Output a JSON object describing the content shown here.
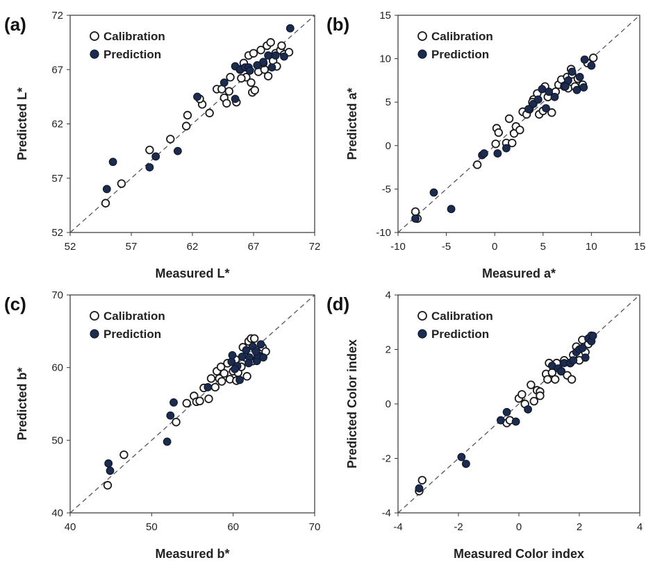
{
  "colors": {
    "calibration_fill": "#ffffff",
    "calibration_stroke": "#1a1a1a",
    "prediction_fill": "#1c2c4f",
    "prediction_stroke": "#0e1830",
    "axis": "#333333",
    "one_to_one_line": "#555555"
  },
  "chart_data": [
    {
      "panel": "(a)",
      "type": "scatter",
      "xlabel": "Measured L*",
      "ylabel": "Predicted L*",
      "xlim": [
        52,
        72
      ],
      "ylim": [
        52,
        72
      ],
      "xticks": [
        52,
        57,
        62,
        67,
        72
      ],
      "yticks": [
        52,
        57,
        62,
        67,
        72
      ],
      "grid": false,
      "legend_position": "top-left",
      "reference_line": "1:1 dashed",
      "series": [
        {
          "name": "Calibration",
          "marker": "open-circle",
          "points": [
            [
              54.9,
              54.7
            ],
            [
              56.2,
              56.5
            ],
            [
              58.5,
              59.6
            ],
            [
              60.2,
              60.6
            ],
            [
              61.5,
              61.8
            ],
            [
              61.6,
              62.8
            ],
            [
              62.8,
              63.8
            ],
            [
              62.6,
              64.3
            ],
            [
              63.4,
              63
            ],
            [
              64,
              65.2
            ],
            [
              64.4,
              65.2
            ],
            [
              64.6,
              64.4
            ],
            [
              64.8,
              63.9
            ],
            [
              65,
              65
            ],
            [
              65.1,
              66.3
            ],
            [
              65.6,
              64
            ],
            [
              65.9,
              67
            ],
            [
              66.2,
              67.6
            ],
            [
              66.4,
              66.3
            ],
            [
              66.6,
              68.3
            ],
            [
              66.8,
              65.8
            ],
            [
              67,
              68.5
            ],
            [
              66.9,
              64.9
            ],
            [
              67.1,
              65.1
            ],
            [
              67.4,
              66.8
            ],
            [
              67.6,
              68.8
            ],
            [
              67.9,
              67
            ],
            [
              68.1,
              69.2
            ],
            [
              68.2,
              66.4
            ],
            [
              68.4,
              69.5
            ],
            [
              68.6,
              67.8
            ],
            [
              68.8,
              68.5
            ],
            [
              68.9,
              67.3
            ],
            [
              69.2,
              68.8
            ],
            [
              69.3,
              69.2
            ],
            [
              69.5,
              68.4
            ],
            [
              69.9,
              68.6
            ],
            [
              66,
              66.2
            ],
            [
              67.8,
              67.6
            ]
          ]
        },
        {
          "name": "Prediction",
          "marker": "filled-circle",
          "points": [
            [
              55,
              56
            ],
            [
              55.5,
              58.5
            ],
            [
              58.5,
              58
            ],
            [
              59,
              59
            ],
            [
              60.8,
              59.5
            ],
            [
              62.4,
              64.5
            ],
            [
              64.6,
              65.8
            ],
            [
              65.5,
              64.3
            ],
            [
              65.5,
              67.3
            ],
            [
              65.9,
              67
            ],
            [
              66.3,
              67.2
            ],
            [
              66.6,
              67.2
            ],
            [
              67.8,
              67.7
            ],
            [
              68.2,
              68.3
            ],
            [
              68.5,
              67.2
            ],
            [
              68.8,
              68.3
            ],
            [
              69.5,
              68.2
            ],
            [
              70,
              70.8
            ],
            [
              67.3,
              67.4
            ],
            [
              66.7,
              66.9
            ]
          ]
        }
      ]
    },
    {
      "panel": "(b)",
      "type": "scatter",
      "xlabel": "Measured a*",
      "ylabel": "Predicted a*",
      "xlim": [
        -10,
        15
      ],
      "ylim": [
        -10,
        15
      ],
      "xticks": [
        -10,
        -5,
        0,
        5,
        10,
        15
      ],
      "yticks": [
        -10,
        -5,
        0,
        5,
        10,
        15
      ],
      "grid": false,
      "legend_position": "top-left",
      "reference_line": "1:1 dashed",
      "series": [
        {
          "name": "Calibration",
          "marker": "open-circle",
          "points": [
            [
              -8.2,
              -7.6
            ],
            [
              -8,
              -8.4
            ],
            [
              -1.8,
              -2.2
            ],
            [
              0.1,
              0.2
            ],
            [
              0.2,
              2
            ],
            [
              0.4,
              1.5
            ],
            [
              1.2,
              0.3
            ],
            [
              1.5,
              3.1
            ],
            [
              1.8,
              0.3
            ],
            [
              2,
              1.4
            ],
            [
              2.2,
              2.2
            ],
            [
              2.6,
              1.8
            ],
            [
              2.9,
              3.9
            ],
            [
              3.3,
              3.6
            ],
            [
              3.6,
              4.2
            ],
            [
              4,
              5.3
            ],
            [
              4.4,
              6
            ],
            [
              4.6,
              3.6
            ],
            [
              5,
              4
            ],
            [
              5.5,
              5.6
            ],
            [
              5.9,
              3.8
            ],
            [
              6.3,
              6.2
            ],
            [
              6.6,
              7
            ],
            [
              6.9,
              7.6
            ],
            [
              7.2,
              6.8
            ],
            [
              7.5,
              7.9
            ],
            [
              7.6,
              6.6
            ],
            [
              8,
              8.2
            ],
            [
              8.3,
              6.8
            ],
            [
              8.6,
              7.7
            ],
            [
              9.1,
              7
            ],
            [
              9.6,
              9.5
            ],
            [
              10.2,
              10.1
            ],
            [
              3.9,
              5
            ],
            [
              5.2,
              6.8
            ],
            [
              7.9,
              8.8
            ]
          ]
        },
        {
          "name": "Prediction",
          "marker": "filled-circle",
          "points": [
            [
              -8.2,
              -8.4
            ],
            [
              -6.3,
              -5.4
            ],
            [
              -4.5,
              -7.3
            ],
            [
              -1.3,
              -1.1
            ],
            [
              -1.1,
              -0.9
            ],
            [
              0.3,
              -0.9
            ],
            [
              1.2,
              -0.3
            ],
            [
              3.5,
              4.2
            ],
            [
              4,
              4.8
            ],
            [
              4.5,
              5.3
            ],
            [
              5.3,
              4.3
            ],
            [
              5.6,
              6.2
            ],
            [
              6.2,
              5.6
            ],
            [
              7.2,
              6.9
            ],
            [
              7.6,
              7.5
            ],
            [
              8,
              8.5
            ],
            [
              8.5,
              6.4
            ],
            [
              9.2,
              6.7
            ],
            [
              9.3,
              9.9
            ],
            [
              10,
              9.2
            ],
            [
              8.8,
              7.9
            ],
            [
              7.3,
              6.8
            ],
            [
              4.9,
              6.5
            ]
          ]
        }
      ]
    },
    {
      "panel": "(c)",
      "type": "scatter",
      "xlabel": "Measured b*",
      "ylabel": "Predicted b*",
      "xlim": [
        40,
        70
      ],
      "ylim": [
        40,
        70
      ],
      "xticks": [
        40,
        50,
        60,
        70
      ],
      "yticks": [
        40,
        50,
        60,
        70
      ],
      "grid": false,
      "legend_position": "top-left",
      "reference_line": "1:1 dashed",
      "series": [
        {
          "name": "Calibration",
          "marker": "open-circle",
          "points": [
            [
              44.6,
              43.8
            ],
            [
              46.6,
              48
            ],
            [
              53,
              52.5
            ],
            [
              54.3,
              55.1
            ],
            [
              55.2,
              56.1
            ],
            [
              55.5,
              55.3
            ],
            [
              55.9,
              55.4
            ],
            [
              56.4,
              57.2
            ],
            [
              57,
              55.7
            ],
            [
              57.3,
              58.5
            ],
            [
              57.8,
              57.3
            ],
            [
              58,
              59.5
            ],
            [
              58.3,
              58.5
            ],
            [
              58.5,
              60.1
            ],
            [
              58.6,
              58.1
            ],
            [
              58.9,
              59.2
            ],
            [
              59.3,
              60.6
            ],
            [
              59.6,
              58.4
            ],
            [
              60,
              59.5
            ],
            [
              60.3,
              61.1
            ],
            [
              60.6,
              59.3
            ],
            [
              61,
              60.1
            ],
            [
              61.2,
              62.8
            ],
            [
              61.5,
              61.4
            ],
            [
              61.9,
              63.6
            ],
            [
              62.2,
              64
            ],
            [
              62.4,
              60.9
            ],
            [
              62.8,
              62.4
            ],
            [
              63.2,
              61.6
            ],
            [
              63.6,
              62.8
            ],
            [
              64,
              62.2
            ],
            [
              62.6,
              64
            ],
            [
              61.7,
              58.8
            ],
            [
              60.4,
              58.2
            ],
            [
              62.9,
              61
            ]
          ]
        },
        {
          "name": "Prediction",
          "marker": "filled-circle",
          "points": [
            [
              44.7,
              46.8
            ],
            [
              44.9,
              45.8
            ],
            [
              51.9,
              49.8
            ],
            [
              52.3,
              53.4
            ],
            [
              52.7,
              55.2
            ],
            [
              56.9,
              57.3
            ],
            [
              59.8,
              60.8
            ],
            [
              59.9,
              61.7
            ],
            [
              60.5,
              60.2
            ],
            [
              60.8,
              58.3
            ],
            [
              61.1,
              61.5
            ],
            [
              61.6,
              62.4
            ],
            [
              62,
              61.4
            ],
            [
              62.4,
              62.9
            ],
            [
              62.9,
              60.9
            ],
            [
              63,
              61.7
            ],
            [
              63.4,
              63.2
            ],
            [
              63.7,
              61.4
            ],
            [
              60.2,
              59.8
            ],
            [
              62.8,
              62.2
            ],
            [
              61.9,
              60.6
            ]
          ]
        }
      ]
    },
    {
      "panel": "(d)",
      "type": "scatter",
      "xlabel": "Measured Color index",
      "ylabel": "Predicted Color index",
      "xlim": [
        -4,
        4
      ],
      "ylim": [
        -4,
        4
      ],
      "xticks": [
        -4,
        -2,
        0,
        2,
        4
      ],
      "yticks": [
        -4,
        -2,
        0,
        2,
        4
      ],
      "grid": false,
      "legend_position": "top-left",
      "reference_line": "1:1 dashed",
      "series": [
        {
          "name": "Calibration",
          "marker": "open-circle",
          "points": [
            [
              -3.3,
              -3.2
            ],
            [
              -3.2,
              -2.8
            ],
            [
              -0.4,
              -0.7
            ],
            [
              -0.3,
              -0.6
            ],
            [
              0,
              0.2
            ],
            [
              0.1,
              0.35
            ],
            [
              0.2,
              0
            ],
            [
              0.4,
              0.7
            ],
            [
              0.5,
              0.1
            ],
            [
              0.6,
              0.5
            ],
            [
              0.7,
              0.45
            ],
            [
              0.9,
              1.1
            ],
            [
              0.95,
              0.9
            ],
            [
              1,
              1.5
            ],
            [
              1.1,
              1.15
            ],
            [
              1.2,
              0.9
            ],
            [
              1.3,
              1.4
            ],
            [
              1.4,
              1.2
            ],
            [
              1.5,
              1.6
            ],
            [
              1.6,
              1.05
            ],
            [
              1.7,
              1.5
            ],
            [
              1.8,
              1.8
            ],
            [
              1.9,
              2.1
            ],
            [
              2,
              1.6
            ],
            [
              2.1,
              2.35
            ],
            [
              2.2,
              1.9
            ],
            [
              2.3,
              2.2
            ],
            [
              2.4,
              2.5
            ],
            [
              1.75,
              0.9
            ],
            [
              1.25,
              1.5
            ],
            [
              0.7,
              0.3
            ]
          ]
        },
        {
          "name": "Prediction",
          "marker": "filled-circle",
          "points": [
            [
              -3.3,
              -3.1
            ],
            [
              -1.9,
              -1.95
            ],
            [
              -1.75,
              -2.2
            ],
            [
              -0.6,
              -0.6
            ],
            [
              -0.4,
              -0.3
            ],
            [
              -0.1,
              -0.65
            ],
            [
              0.3,
              -0.2
            ],
            [
              1.1,
              1.4
            ],
            [
              1.3,
              1.3
            ],
            [
              1.5,
              1.5
            ],
            [
              1.7,
              1.5
            ],
            [
              1.8,
              1.6
            ],
            [
              1.9,
              1.9
            ],
            [
              2,
              2
            ],
            [
              2.1,
              2.05
            ],
            [
              2.2,
              1.7
            ],
            [
              2.3,
              2.4
            ],
            [
              2.4,
              2.3
            ],
            [
              2.45,
              2.5
            ],
            [
              1.4,
              1.2
            ]
          ]
        }
      ]
    }
  ]
}
